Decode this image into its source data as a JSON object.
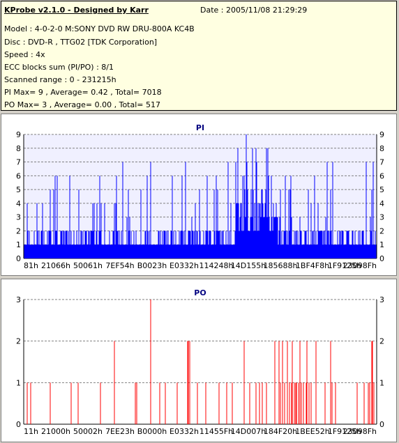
{
  "header": {
    "title": "KProbe v2.1.0 - Designed by Karr",
    "date": "Date : 2005/11/08 21:29:29",
    "lines": [
      "Model : 4-0-2-0 M:SONY    DVD RW DRU-800A  KC4B",
      "Disc : DVD-R , TTG02 [TDK Corporation]",
      "Speed : 4x",
      "ECC blocks sum (PI/PO) : 8/1",
      "Scanned range : 0 - 231215h",
      "PI Max= 9 , Average= 0.42 , Total= 7018",
      "PO Max= 3 , Average= 0.00 , Total= 517"
    ]
  },
  "colors": {
    "pi": "#0000ff",
    "po": "#ff0000",
    "pi_bg": "#f0f0ff",
    "grid": "#808080"
  },
  "chart_data": [
    {
      "type": "bar",
      "title": "PI",
      "x_tick_labels": [
        "81h",
        "21066h",
        "50061h",
        "7EF54h",
        "B0023h",
        "E0332h",
        "114248h",
        "14D155h",
        "185688h",
        "1BF4F8h",
        "1F9125h",
        "23098Fh"
      ],
      "y_ticks": [
        0,
        1,
        2,
        3,
        4,
        5,
        6,
        7,
        8,
        9
      ],
      "ylim": [
        0,
        9
      ],
      "xlim_hex": [
        "0",
        "231215h"
      ],
      "grid": true,
      "max": 9,
      "average": 0.42,
      "total": 7018
    },
    {
      "type": "bar",
      "title": "PO",
      "x_tick_labels": [
        "11h",
        "21000h",
        "50002h",
        "7EE23h",
        "B0000h",
        "E0332h",
        "11455Fh",
        "14D007h",
        "184F20h",
        "1BEE52h",
        "1F9125h",
        "23098Fh"
      ],
      "y_ticks": [
        0,
        1,
        2,
        3
      ],
      "ylim": [
        0,
        3
      ],
      "xlim_hex": [
        "0",
        "231215h"
      ],
      "grid": true,
      "max": 3,
      "average": 0.0,
      "total": 517,
      "points": [
        [
          5,
          1
        ],
        [
          10,
          1
        ],
        [
          38,
          1
        ],
        [
          68,
          1
        ],
        [
          78,
          1
        ],
        [
          110,
          1
        ],
        [
          130,
          2
        ],
        [
          160,
          1
        ],
        [
          162,
          1
        ],
        [
          182,
          3
        ],
        [
          195,
          1
        ],
        [
          203,
          1
        ],
        [
          220,
          1
        ],
        [
          235,
          2
        ],
        [
          236,
          2
        ],
        [
          238,
          2
        ],
        [
          249,
          1
        ],
        [
          261,
          1
        ],
        [
          280,
          1
        ],
        [
          291,
          1
        ],
        [
          299,
          1
        ],
        [
          316,
          2
        ],
        [
          324,
          1
        ],
        [
          333,
          1
        ],
        [
          338,
          1
        ],
        [
          342,
          1
        ],
        [
          348,
          1
        ],
        [
          360,
          2
        ],
        [
          366,
          2
        ],
        [
          368,
          1
        ],
        [
          371,
          2
        ],
        [
          374,
          1
        ],
        [
          378,
          2
        ],
        [
          381,
          1
        ],
        [
          384,
          1
        ],
        [
          385,
          2
        ],
        [
          388,
          1
        ],
        [
          390,
          1
        ],
        [
          391,
          1
        ],
        [
          394,
          1
        ],
        [
          396,
          2
        ],
        [
          398,
          1
        ],
        [
          401,
          1
        ],
        [
          405,
          1
        ],
        [
          406,
          2
        ],
        [
          409,
          1
        ],
        [
          412,
          1
        ],
        [
          419,
          2
        ],
        [
          432,
          1
        ],
        [
          440,
          2
        ],
        [
          442,
          1
        ],
        [
          447,
          1
        ],
        [
          478,
          1
        ],
        [
          488,
          1
        ],
        [
          494,
          1
        ],
        [
          496,
          1
        ],
        [
          499,
          2
        ],
        [
          500,
          2
        ],
        [
          502,
          1
        ]
      ]
    }
  ]
}
